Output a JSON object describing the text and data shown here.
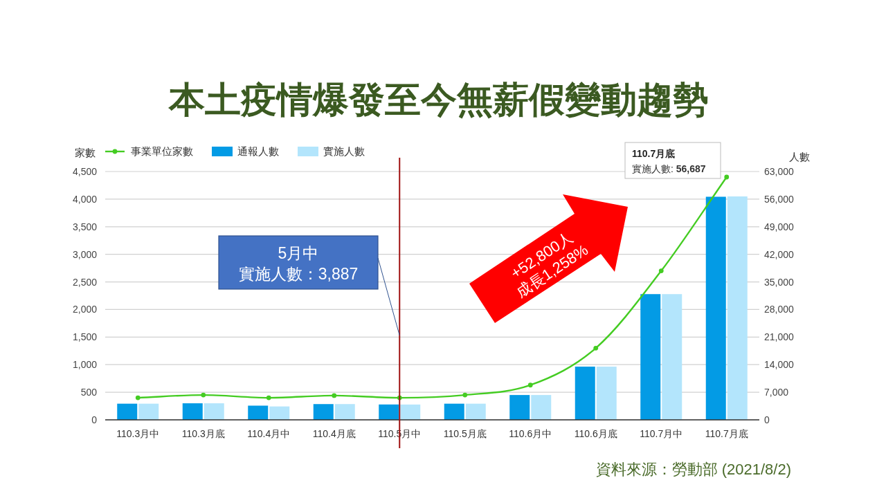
{
  "chart_data": {
    "type": "bar",
    "title": "本土疫情爆發至今無薪假變動趨勢",
    "ylabel": "家數",
    "y2label": "人數",
    "categories": [
      "110.3月中",
      "110.3月底",
      "110.4月中",
      "110.4月底",
      "110.5月中",
      "110.5月底",
      "110.6月中",
      "110.6月底",
      "110.7月中",
      "110.7月底"
    ],
    "series": [
      {
        "name": "事業單位家數",
        "type": "line",
        "color": "#44cc22",
        "values": [
          400,
          450,
          400,
          440,
          400,
          450,
          630,
          1300,
          2700,
          4400
        ]
      },
      {
        "name": "通報人數",
        "axis": "y2",
        "color": "#039be5",
        "values": [
          4100,
          4200,
          3600,
          4000,
          3900,
          4100,
          6300,
          13500,
          31900,
          56600
        ]
      },
      {
        "name": "實施人數",
        "axis": "y2",
        "color": "#b3e5fc",
        "values": [
          4100,
          4200,
          3400,
          4000,
          3887,
          4100,
          6300,
          13500,
          31900,
          56687
        ]
      }
    ],
    "ylim": [
      0,
      4500
    ],
    "yticks": [
      0,
      500,
      {
        "value": 1000,
        "label": "1,000"
      },
      {
        "value": 1500,
        "label": "1,500"
      },
      {
        "value": 2000,
        "label": "2,000"
      },
      {
        "value": 2500,
        "label": "2,500"
      },
      {
        "value": 3000,
        "label": "3,000"
      },
      {
        "value": 3500,
        "label": "3,500"
      },
      {
        "value": 4000,
        "label": "4,000"
      },
      {
        "value": 4500,
        "label": "4,500"
      }
    ],
    "y2lim": [
      0,
      63000
    ],
    "y2ticks": [
      0,
      {
        "value": 7000,
        "label": "7,000"
      },
      {
        "value": 14000,
        "label": "14,000"
      },
      {
        "value": 21000,
        "label": "21,000"
      },
      {
        "value": 28000,
        "label": "28,000"
      },
      {
        "value": 35000,
        "label": "35,000"
      },
      {
        "value": 42000,
        "label": "42,000"
      },
      {
        "value": 49000,
        "label": "49,000"
      },
      {
        "value": 56000,
        "label": "56,000"
      },
      {
        "value": 63000,
        "label": "63,000"
      }
    ],
    "grid": "y",
    "legend": "top left",
    "marker": "circle",
    "line_style": "solid",
    "ref_lines": [
      {
        "axis": "x",
        "value": "110.5月中",
        "color": "#a01010"
      }
    ],
    "annotations": [
      "5月中",
      "實施人數：3,887",
      "+52,800人",
      "成長1,258%",
      "110.7月底",
      "實施人數: **56,687**",
      "資料來源：勞動部 (2021/8/2)"
    ]
  }
}
